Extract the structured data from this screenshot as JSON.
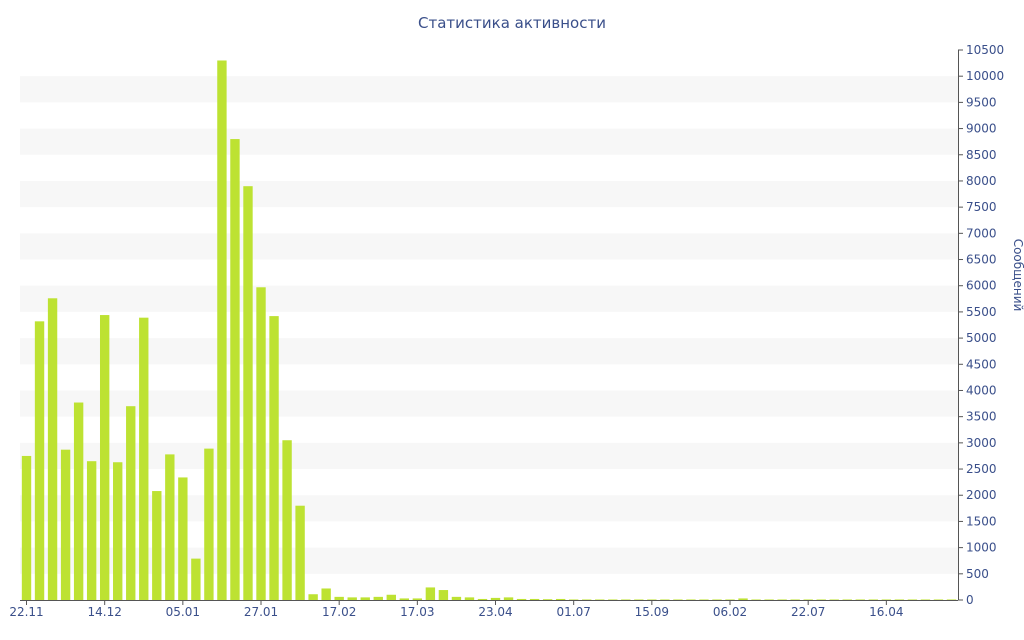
{
  "title": "Статистика активности",
  "colors": {
    "bar": "#bde232",
    "band": "#f7f7f7",
    "text": "#3a4f8a",
    "axis": "#555555"
  },
  "chart_data": {
    "type": "bar",
    "title": "Статистика активности",
    "ylabel": "Сообщений",
    "ylim": [
      0,
      10500
    ],
    "y_ticks": [
      0,
      500,
      1000,
      1500,
      2000,
      2500,
      3000,
      3500,
      4000,
      4500,
      5000,
      5500,
      6000,
      6500,
      7000,
      7500,
      8000,
      8500,
      9000,
      9500,
      10000,
      10500
    ],
    "y_axis_position": "right",
    "grid": "alternating horizontal bands",
    "x_tick_labels": [
      "22.11",
      "14.12",
      "05.01",
      "27.01",
      "17.02",
      "17.03",
      "23.04",
      "01.07",
      "15.09",
      "06.02",
      "22.07",
      "16.04"
    ],
    "x_tick_every": 6,
    "values": [
      2750,
      5320,
      5760,
      2870,
      3770,
      2650,
      5440,
      2630,
      3700,
      5390,
      2080,
      2780,
      2340,
      790,
      2890,
      10300,
      8800,
      7900,
      5970,
      5420,
      3050,
      1800,
      110,
      220,
      60,
      50,
      50,
      60,
      100,
      30,
      30,
      240,
      190,
      60,
      50,
      20,
      40,
      50,
      20,
      20,
      15,
      20,
      10,
      10,
      10,
      10,
      10,
      10,
      10,
      10,
      10,
      10,
      10,
      10,
      10,
      30,
      10,
      10,
      10,
      10,
      10,
      10,
      10,
      10,
      10,
      10,
      10,
      10,
      10,
      10,
      10,
      10
    ]
  }
}
